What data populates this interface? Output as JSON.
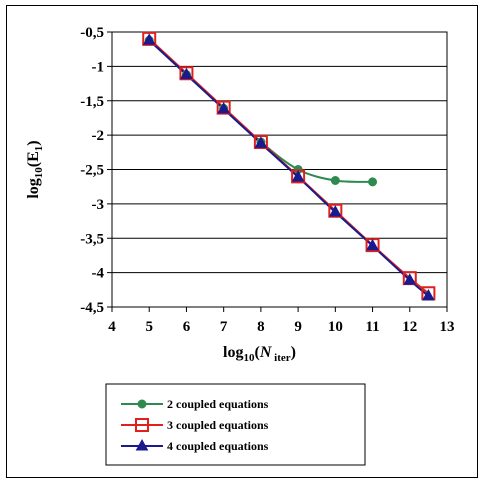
{
  "chart_data": {
    "type": "line",
    "xlabel": "log10(N iter)",
    "ylabel": "log10(E1)",
    "xlim": [
      4,
      13
    ],
    "ylim": [
      -4.5,
      -0.5
    ],
    "x_ticks": [
      "4",
      "5",
      "6",
      "7",
      "8",
      "9",
      "10",
      "11",
      "12",
      "13"
    ],
    "y_ticks": [
      "-0,5",
      "-1",
      "-1,5",
      "-2",
      "-2,5",
      "-3",
      "-3,5",
      "-4",
      "-4,5"
    ],
    "grid": "horizontal",
    "legend_position": "bottom",
    "series": [
      {
        "name": "2 coupled equations",
        "color": "#2e8b4f",
        "marker": "circle",
        "x": [
          5,
          6,
          7,
          8,
          9,
          10,
          11
        ],
        "y": [
          -0.62,
          -1.12,
          -1.61,
          -2.1,
          -2.5,
          -2.66,
          -2.68
        ]
      },
      {
        "name": "3 coupled equations",
        "color": "#e0201c",
        "marker": "square",
        "x": [
          5,
          6,
          7,
          8,
          9,
          10,
          11,
          12,
          12.5
        ],
        "y": [
          -0.6,
          -1.1,
          -1.6,
          -2.1,
          -2.6,
          -3.1,
          -3.6,
          -4.08,
          -4.3
        ]
      },
      {
        "name": "4 coupled equations",
        "color": "#1a1a8c",
        "marker": "triangle",
        "x": [
          5,
          6,
          7,
          8,
          9,
          10,
          11,
          12,
          12.5
        ],
        "y": [
          -0.62,
          -1.12,
          -1.62,
          -2.12,
          -2.61,
          -3.12,
          -3.61,
          -4.11,
          -4.34
        ]
      }
    ]
  }
}
